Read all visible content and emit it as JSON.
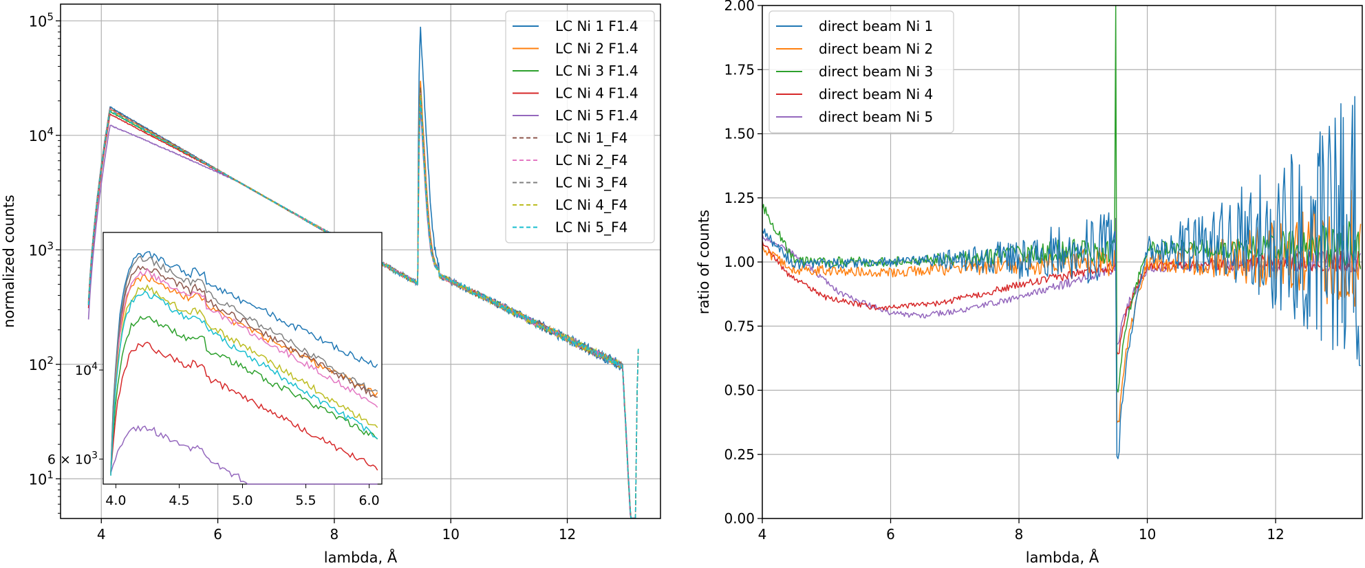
{
  "chart_data": [
    {
      "type": "line",
      "title": "",
      "xlabel": "lambda, Å",
      "ylabel": "normalized counts",
      "yscale": "log",
      "xlim": [
        3.3,
        13.6
      ],
      "ylim": [
        4.5,
        140000
      ],
      "grid": true,
      "legend_position": "top-right",
      "xticks": [
        {
          "value": 4,
          "label": "4"
        },
        {
          "value": 6,
          "label": "6"
        },
        {
          "value": 8,
          "label": "8"
        },
        {
          "value": 10,
          "label": "10"
        },
        {
          "value": 12,
          "label": "12"
        }
      ],
      "yticks": [
        {
          "value": 10,
          "base": "10",
          "exp": "1"
        },
        {
          "value": 100,
          "base": "10",
          "exp": "2"
        },
        {
          "value": 1000,
          "base": "10",
          "exp": "3"
        },
        {
          "value": 10000,
          "base": "10",
          "exp": "4"
        },
        {
          "value": 100000,
          "base": "10",
          "exp": "5"
        }
      ],
      "series": [
        {
          "name": "LC Ni 1 F1.4",
          "color": "#1f77b4",
          "dash": "solid",
          "scale": 1.04,
          "peak": 88000,
          "noise": 0.1
        },
        {
          "name": "LC Ni 2 F1.4",
          "color": "#ff7f0e",
          "dash": "solid",
          "scale": 1.0,
          "peak": 30000,
          "noise": 0.05
        },
        {
          "name": "LC Ni 3 F1.4",
          "color": "#2ca02c",
          "dash": "solid",
          "scale": 0.95,
          "peak": 25000,
          "noise": 0.05
        },
        {
          "name": "LC Ni 4 F1.4",
          "color": "#d62728",
          "dash": "solid",
          "scale": 0.9,
          "peak": 22000,
          "noise": 0.04
        },
        {
          "name": "LC Ni 5 F1.4",
          "color": "#9467bd",
          "dash": "solid",
          "scale": 0.72,
          "peak": 18000,
          "noise": 0.04
        },
        {
          "name": "LC Ni 1_F4",
          "color": "#8c564b",
          "dash": "dashed",
          "scale": 1.02,
          "peak": 26000,
          "noise": 0.06
        },
        {
          "name": "LC Ni 2_F4",
          "color": "#e377c2",
          "dash": "dashed",
          "scale": 0.99,
          "peak": 24000,
          "noise": 0.06
        },
        {
          "name": "LC Ni 3_F4",
          "color": "#7f7f7f",
          "dash": "dashed",
          "scale": 0.98,
          "peak": 23000,
          "noise": 0.06
        },
        {
          "name": "LC Ni 4_F4",
          "color": "#bcbd22",
          "dash": "dashed",
          "scale": 0.97,
          "peak": 22000,
          "noise": 0.06
        },
        {
          "name": "LC Ni 5_F4",
          "color": "#17becf",
          "dash": "dashed",
          "scale": 0.96,
          "peak": 21000,
          "noise": 0.06
        }
      ],
      "inset": {
        "xlim": [
          3.9,
          6.1
        ],
        "ylim": [
          5200,
          22000
        ],
        "yscale": "log",
        "xticks": [
          {
            "value": 4.0,
            "label": "4.0"
          },
          {
            "value": 4.5,
            "label": "4.5"
          },
          {
            "value": 5.0,
            "label": "5.0"
          },
          {
            "value": 5.5,
            "label": "5.5"
          },
          {
            "value": 6.0,
            "label": "6.0"
          }
        ],
        "yticks": [
          {
            "value": 10000,
            "label": "10",
            "exp": "4"
          },
          {
            "value": 6000,
            "label": "6 × 10",
            "exp": "3"
          }
        ]
      }
    },
    {
      "type": "line",
      "title": "",
      "xlabel": "lambda, Å",
      "ylabel": "ratio of counts",
      "xlim": [
        4,
        13.35
      ],
      "ylim": [
        0,
        2
      ],
      "grid": true,
      "legend_position": "top-left",
      "xticks": [
        {
          "value": 4,
          "label": "4"
        },
        {
          "value": 6,
          "label": "6"
        },
        {
          "value": 8,
          "label": "8"
        },
        {
          "value": 10,
          "label": "10"
        },
        {
          "value": 12,
          "label": "12"
        }
      ],
      "yticks": [
        {
          "value": 0,
          "label": "0.00"
        },
        {
          "value": 0.25,
          "label": "0.25"
        },
        {
          "value": 0.5,
          "label": "0.50"
        },
        {
          "value": 0.75,
          "label": "0.75"
        },
        {
          "value": 1.0,
          "label": "1.00"
        },
        {
          "value": 1.25,
          "label": "1.25"
        },
        {
          "value": 1.5,
          "label": "1.50"
        },
        {
          "value": 1.75,
          "label": "1.75"
        },
        {
          "value": 2.0,
          "label": "2.00"
        }
      ],
      "series": [
        {
          "name": "direct beam Ni 1",
          "color": "#1f77b4",
          "dip_min": 0.24,
          "spike": 1.0,
          "profile": [
            [
              4.0,
              1.12
            ],
            [
              4.5,
              0.99
            ],
            [
              6.0,
              1.0
            ],
            [
              8.0,
              1.02
            ],
            [
              9.4,
              1.05
            ],
            [
              13.3,
              1.05
            ]
          ],
          "noise_pre": [
            0.02,
            0.15
          ],
          "noise_post": [
            0.08,
            0.7
          ]
        },
        {
          "name": "direct beam Ni 2",
          "color": "#ff7f0e",
          "dip_min": 0.37,
          "spike": 1.0,
          "profile": [
            [
              4.0,
              1.05
            ],
            [
              4.5,
              0.97
            ],
            [
              6.0,
              0.96
            ],
            [
              8.0,
              0.99
            ],
            [
              9.4,
              1.0
            ],
            [
              13.3,
              1.0
            ]
          ],
          "noise_pre": [
            0.02,
            0.06
          ],
          "noise_post": [
            0.05,
            0.3
          ]
        },
        {
          "name": "direct beam Ni 3",
          "color": "#2ca02c",
          "dip_min": 0.5,
          "spike": 2.05,
          "profile": [
            [
              4.0,
              1.22
            ],
            [
              4.5,
              1.0
            ],
            [
              6.0,
              1.0
            ],
            [
              8.0,
              1.03
            ],
            [
              9.4,
              1.05
            ],
            [
              13.3,
              1.05
            ]
          ],
          "noise_pre": [
            0.02,
            0.06
          ],
          "noise_post": [
            0.03,
            0.12
          ]
        },
        {
          "name": "direct beam Ni 4",
          "color": "#d62728",
          "dip_min": 0.65,
          "spike": 1.0,
          "profile": [
            [
              4.0,
              1.08
            ],
            [
              4.4,
              0.95
            ],
            [
              5.0,
              0.86
            ],
            [
              5.8,
              0.82
            ],
            [
              6.8,
              0.84
            ],
            [
              8.0,
              0.91
            ],
            [
              9.4,
              0.98
            ],
            [
              13.3,
              1.0
            ]
          ],
          "noise_pre": [
            0.01,
            0.02
          ],
          "noise_post": [
            0.02,
            0.06
          ]
        },
        {
          "name": "direct beam Ni 5",
          "color": "#9467bd",
          "dip_min": 0.68,
          "spike": 1.17,
          "profile": [
            [
              4.0,
              1.1
            ],
            [
              4.5,
              1.03
            ],
            [
              5.2,
              0.88
            ],
            [
              6.0,
              0.8
            ],
            [
              6.5,
              0.79
            ],
            [
              7.3,
              0.82
            ],
            [
              8.3,
              0.88
            ],
            [
              9.4,
              0.97
            ],
            [
              13.3,
              1.0
            ]
          ],
          "noise_pre": [
            0.01,
            0.02
          ],
          "noise_post": [
            0.02,
            0.06
          ]
        }
      ]
    }
  ]
}
